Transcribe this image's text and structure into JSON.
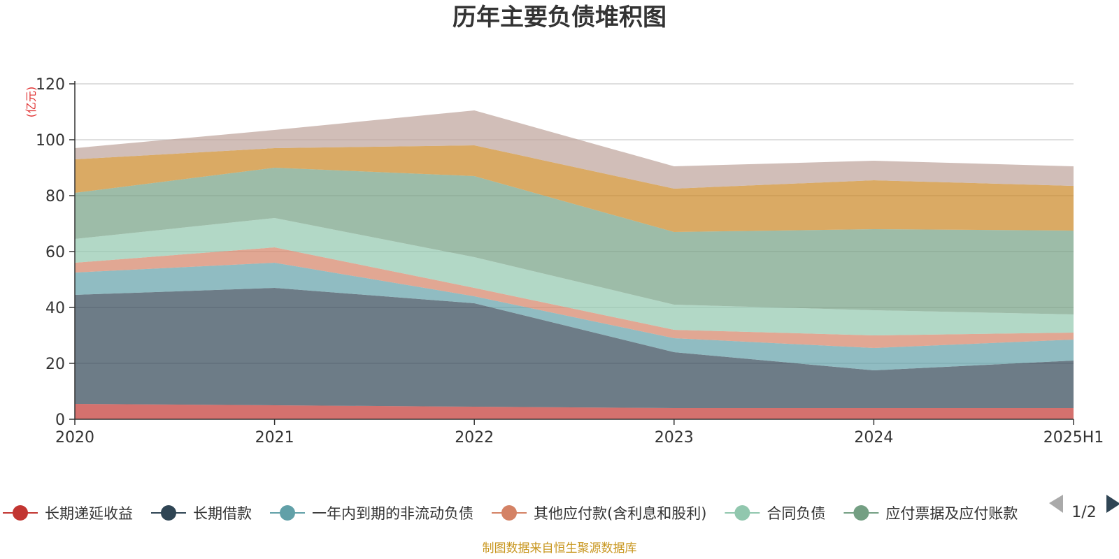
{
  "source_note": "制图数据来自恒生聚源数据库",
  "legend_pager": {
    "page_text": "1/2"
  },
  "chart_data": {
    "type": "area",
    "stacked": true,
    "title": "历年主要负债堆积图",
    "unit": "(亿元)",
    "categories": [
      "2020",
      "2021",
      "2022",
      "2023",
      "2024",
      "2025H1"
    ],
    "y_ticks": [
      "0",
      "20",
      "40",
      "60",
      "80",
      "100",
      "120"
    ],
    "ylim": [
      0,
      120
    ],
    "grid": true,
    "legend_position": "bottom",
    "series": [
      {
        "name": "长期递延收益",
        "color": "#c23531",
        "values": [
          5.5,
          5.0,
          4.5,
          4.0,
          4.0,
          4.0
        ]
      },
      {
        "name": "长期借款",
        "color": "#2f4554",
        "values": [
          39.0,
          42.0,
          37.0,
          20.0,
          13.5,
          17.0
        ]
      },
      {
        "name": "一年内到期的非流动负债",
        "color": "#61a0a8",
        "values": [
          8.0,
          9.0,
          2.5,
          5.0,
          8.0,
          7.5
        ]
      },
      {
        "name": "其他应付款(含利息和股利)",
        "color": "#d48265",
        "values": [
          3.5,
          5.5,
          3.0,
          3.0,
          4.5,
          2.5
        ]
      },
      {
        "name": "合同负债",
        "color": "#91c7ae",
        "values": [
          8.5,
          10.5,
          11.0,
          9.0,
          9.0,
          6.5
        ]
      },
      {
        "name": "应付票据及应付账款",
        "color": "#749f83",
        "values": [
          16.5,
          18.0,
          29.0,
          26.0,
          29.0,
          30.0
        ]
      },
      {
        "name": "",
        "color": "#ca8622",
        "values": [
          12.0,
          7.0,
          11.0,
          15.5,
          17.5,
          16.0
        ]
      },
      {
        "name": "",
        "color": "#bda29a",
        "values": [
          4.0,
          6.5,
          12.5,
          8.0,
          7.0,
          7.0
        ]
      }
    ]
  }
}
